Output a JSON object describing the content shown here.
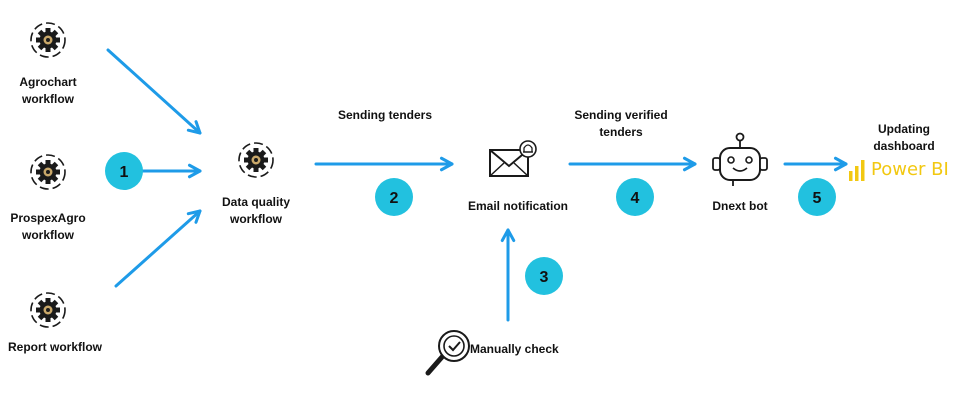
{
  "colors": {
    "arrow": "#1e9be8",
    "badge": "#22c1df",
    "badge_text": "#111111",
    "icon": "#1a1a1a",
    "gear_accent": "#c9a86a",
    "powerbi": "#f2c811"
  },
  "nodes": {
    "agrochart": {
      "line1": "Agrochart",
      "line2": "workflow",
      "icon": "gear-icon"
    },
    "prospexagro": {
      "line1": "ProspexAgro",
      "line2": "workflow",
      "icon": "gear-icon"
    },
    "report": {
      "line1": "Report  workflow",
      "icon": "gear-icon"
    },
    "data_quality": {
      "line1": "Data quality",
      "line2": "workflow",
      "icon": "gear-icon"
    },
    "email": {
      "line1": "Email notification",
      "icon": "email-bell-icon"
    },
    "manual": {
      "line1": "Manually check",
      "icon": "magnifier-check-icon"
    },
    "bot": {
      "line1": "Dnext bot",
      "icon": "robot-icon"
    },
    "powerbi": {
      "text": "Power BI",
      "icon": "powerbi-icon"
    }
  },
  "edges": {
    "sending_tenders": "Sending tenders",
    "sending_verified": {
      "line1": "Sending verified",
      "line2": "tenders"
    },
    "updating": {
      "line1": "Updating",
      "line2": "dashboard"
    }
  },
  "steps": [
    "1",
    "2",
    "3",
    "4",
    "5"
  ]
}
